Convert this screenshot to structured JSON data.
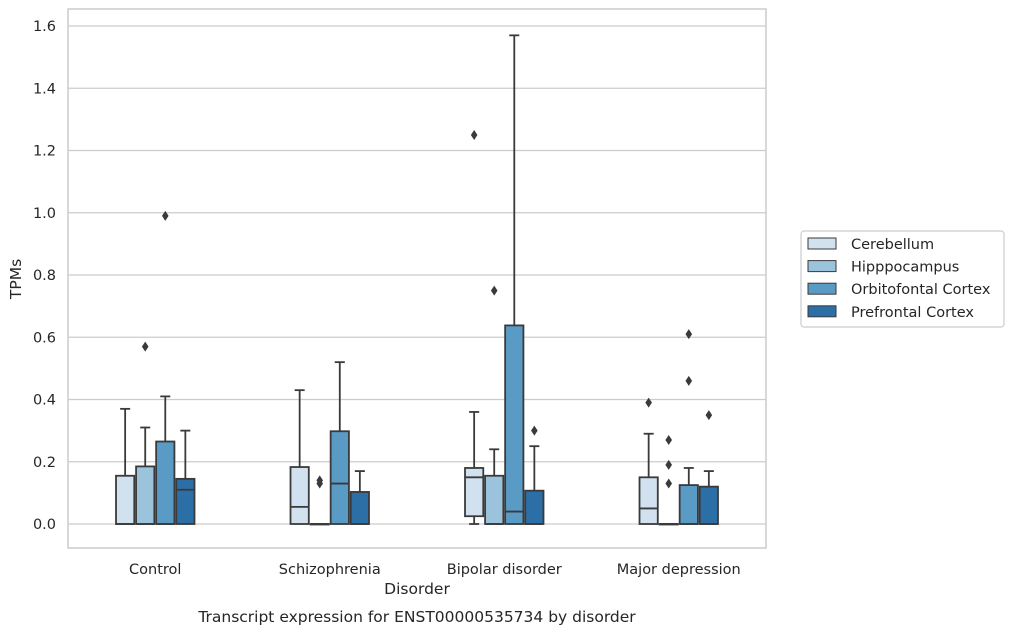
{
  "chart_data": {
    "type": "box",
    "xlabel": "Disorder",
    "ylabel": "TPMs",
    "caption": "Transcript expression for ENST00000535734 by disorder",
    "ylim": [
      -0.075,
      1.65
    ],
    "yticks": [
      "0.0",
      "0.2",
      "0.4",
      "0.6",
      "0.8",
      "1.0",
      "1.2",
      "1.4",
      "1.6"
    ],
    "grid": true,
    "legend_position": "right",
    "categories": [
      "Control",
      "Schizophrenia",
      "Bipolar disorder",
      "Major depression"
    ],
    "series": [
      {
        "name": "Cerebellum",
        "color": "#d1e1f0",
        "boxes": [
          {
            "q1": 0.0,
            "median": 0.0,
            "q3": 0.155,
            "whisker_low": 0.0,
            "whisker_high": 0.37,
            "outliers": []
          },
          {
            "q1": 0.0,
            "median": 0.055,
            "q3": 0.183,
            "whisker_low": 0.0,
            "whisker_high": 0.43,
            "outliers": []
          },
          {
            "q1": 0.025,
            "median": 0.15,
            "q3": 0.18,
            "whisker_low": 0.0,
            "whisker_high": 0.36,
            "outliers": [
              1.25
            ]
          },
          {
            "q1": 0.0,
            "median": 0.05,
            "q3": 0.15,
            "whisker_low": 0.0,
            "whisker_high": 0.29,
            "outliers": [
              0.39
            ]
          }
        ]
      },
      {
        "name": "Hipppocampus",
        "color": "#9cc3dc",
        "boxes": [
          {
            "q1": 0.0,
            "median": 0.0,
            "q3": 0.185,
            "whisker_low": 0.0,
            "whisker_high": 0.31,
            "outliers": [
              0.57
            ]
          },
          {
            "q1": 0.0,
            "median": 0.0,
            "q3": 0.0,
            "whisker_low": 0.0,
            "whisker_high": 0.0,
            "outliers": [
              0.13,
              0.14
            ]
          },
          {
            "q1": 0.0,
            "median": 0.0,
            "q3": 0.155,
            "whisker_low": 0.0,
            "whisker_high": 0.24,
            "outliers": [
              0.75
            ]
          },
          {
            "q1": 0.0,
            "median": 0.0,
            "q3": 0.0,
            "whisker_low": 0.0,
            "whisker_high": 0.0,
            "outliers": [
              0.13,
              0.19,
              0.27
            ]
          }
        ]
      },
      {
        "name": "Orbitofontal Cortex",
        "color": "#5a9bc6",
        "boxes": [
          {
            "q1": 0.0,
            "median": 0.0,
            "q3": 0.265,
            "whisker_low": 0.0,
            "whisker_high": 0.41,
            "outliers": [
              0.99
            ]
          },
          {
            "q1": 0.0,
            "median": 0.13,
            "q3": 0.298,
            "whisker_low": 0.0,
            "whisker_high": 0.52,
            "outliers": []
          },
          {
            "q1": 0.0,
            "median": 0.04,
            "q3": 0.638,
            "whisker_low": 0.0,
            "whisker_high": 1.57,
            "outliers": []
          },
          {
            "q1": 0.0,
            "median": 0.0,
            "q3": 0.125,
            "whisker_low": 0.0,
            "whisker_high": 0.18,
            "outliers": [
              0.46,
              0.61
            ]
          }
        ]
      },
      {
        "name": "Prefrontal Cortex",
        "color": "#2c6ea6",
        "boxes": [
          {
            "q1": 0.0,
            "median": 0.11,
            "q3": 0.145,
            "whisker_low": 0.0,
            "whisker_high": 0.3,
            "outliers": []
          },
          {
            "q1": 0.0,
            "median": 0.0,
            "q3": 0.103,
            "whisker_low": 0.0,
            "whisker_high": 0.17,
            "outliers": []
          },
          {
            "q1": 0.0,
            "median": 0.0,
            "q3": 0.107,
            "whisker_low": 0.0,
            "whisker_high": 0.25,
            "outliers": [
              0.3
            ]
          },
          {
            "q1": 0.0,
            "median": 0.0,
            "q3": 0.12,
            "whisker_low": 0.0,
            "whisker_high": 0.17,
            "outliers": [
              0.35
            ]
          }
        ]
      }
    ]
  }
}
